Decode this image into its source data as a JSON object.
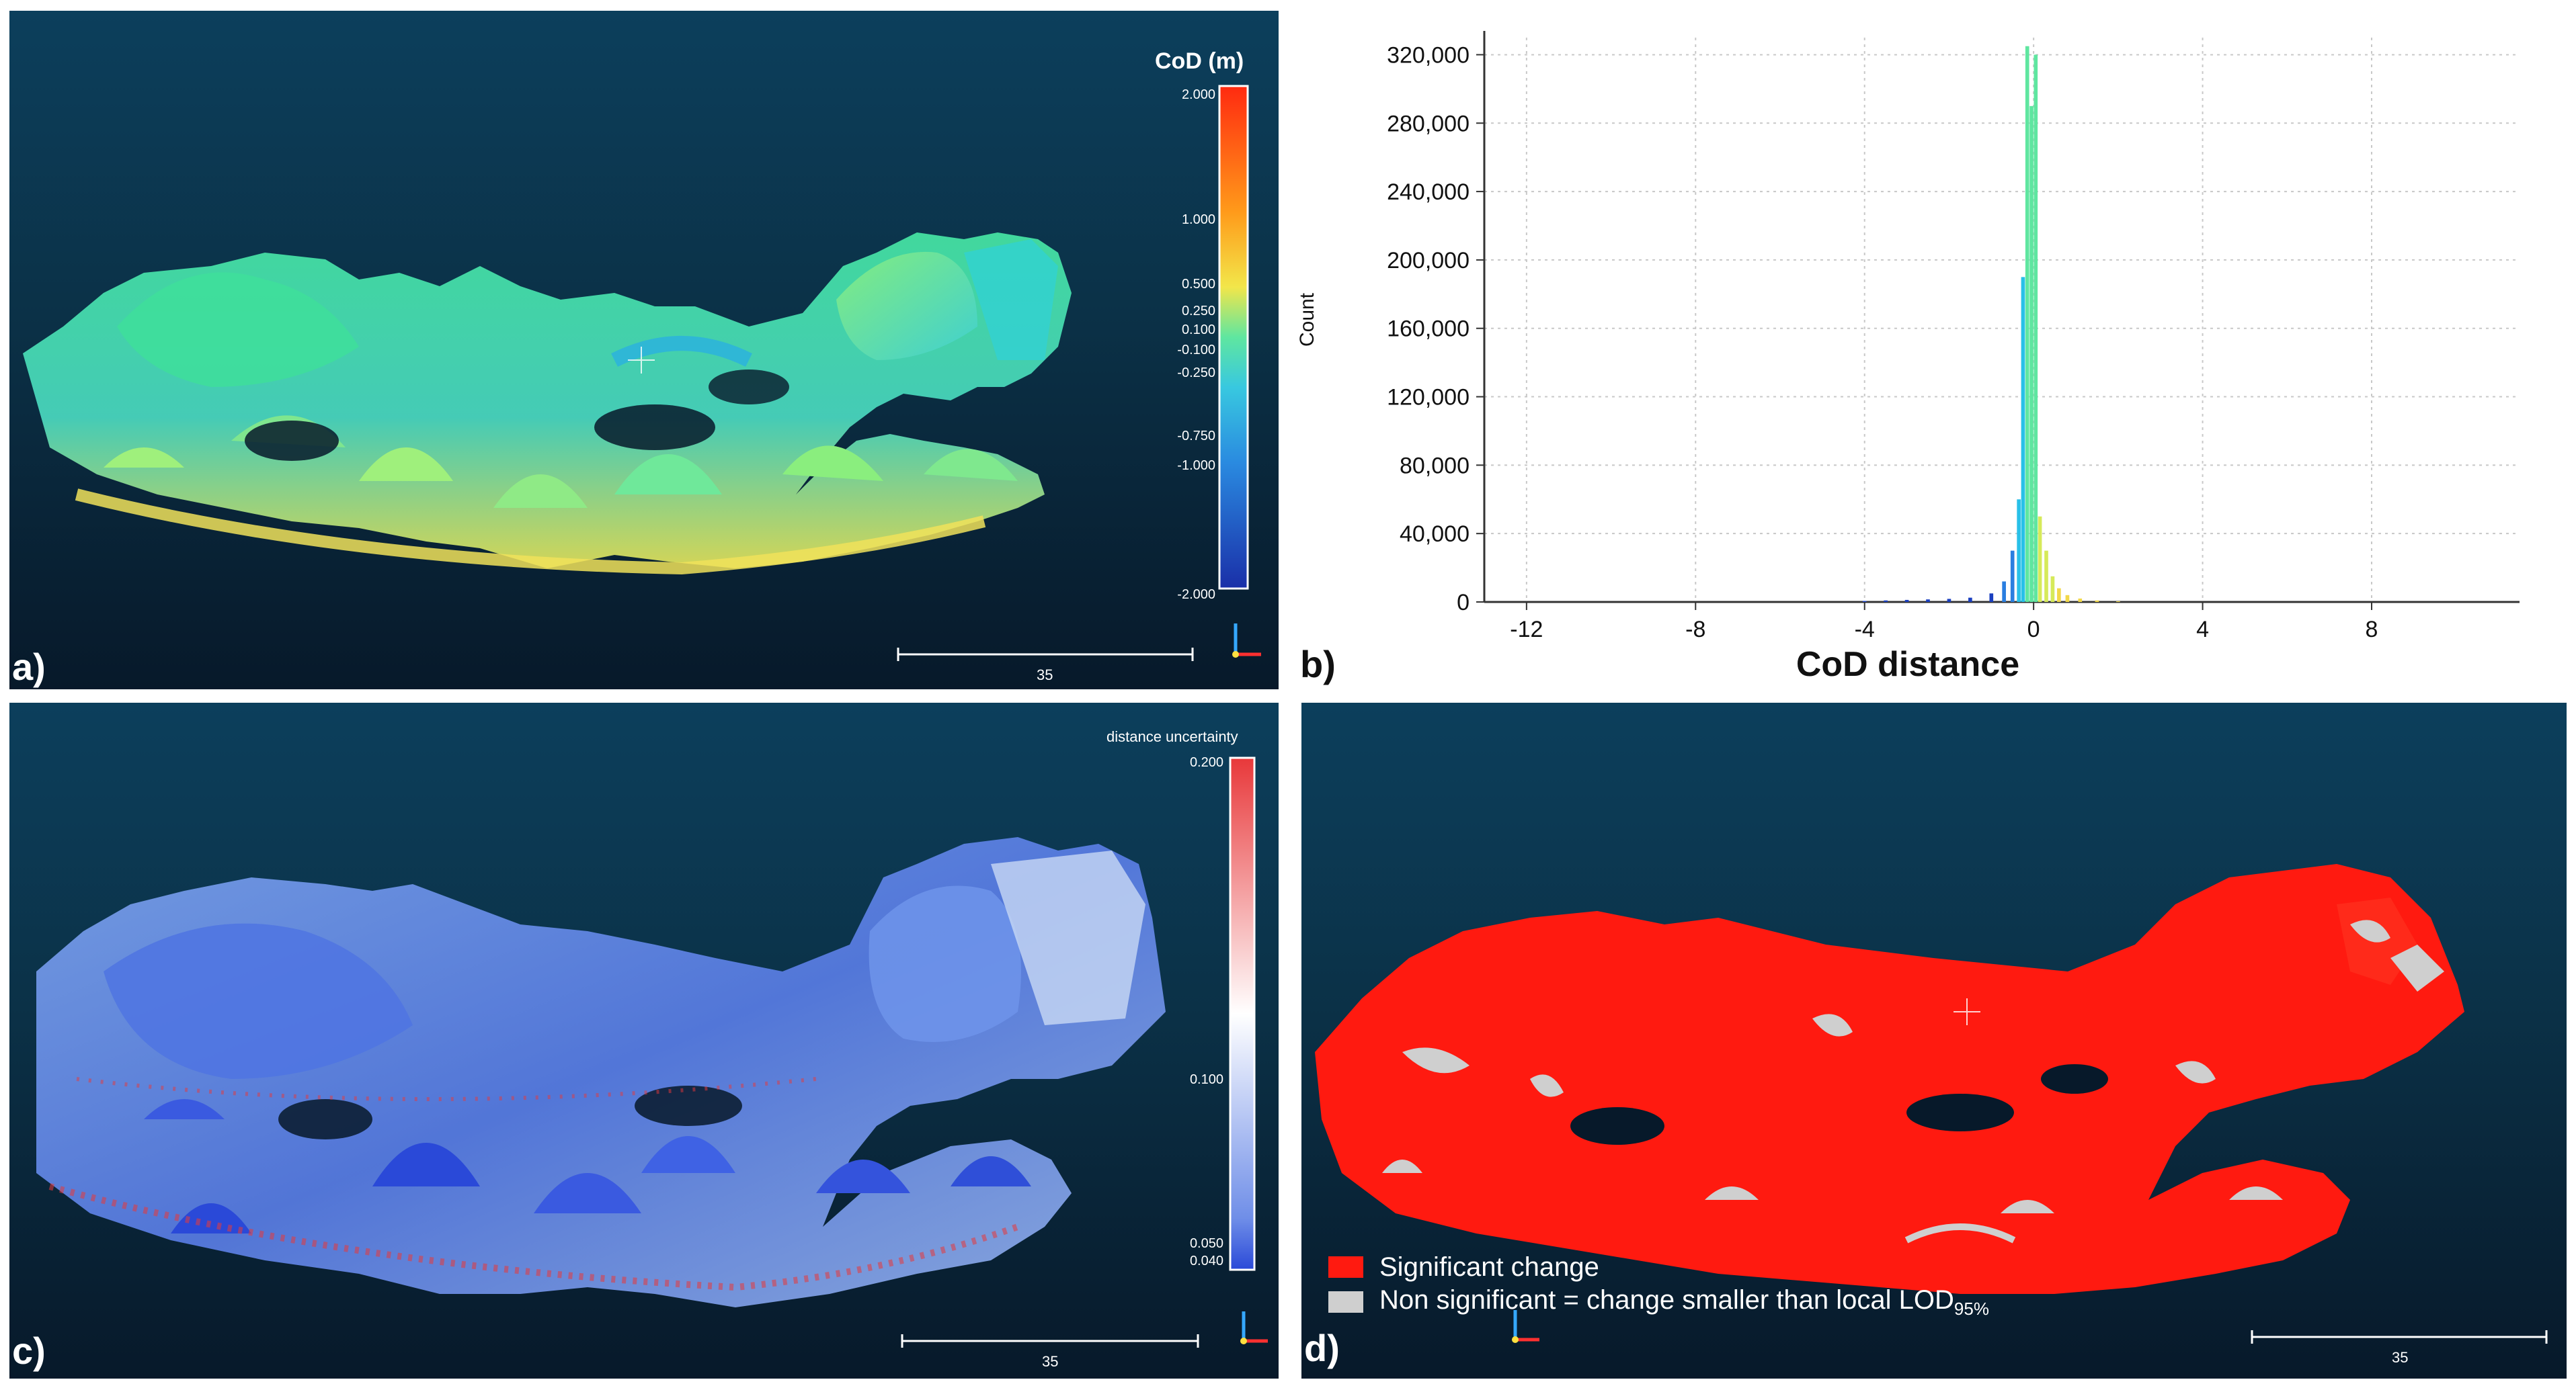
{
  "panels": {
    "a": {
      "label": "a)",
      "colorbar": {
        "title": "CoD (m)",
        "ticks": [
          "2.000",
          "1.000",
          "0.500",
          "0.250",
          "0.100",
          "-0.100",
          "-0.250",
          "-0.750",
          "-1.000",
          "-2.000"
        ],
        "tick_values": [
          2.0,
          1.0,
          0.5,
          0.25,
          0.1,
          -0.1,
          -0.25,
          -0.75,
          -1.0,
          -2.0
        ]
      },
      "scale_bar": {
        "label": "35"
      }
    },
    "b": {
      "label": "b)"
    },
    "c": {
      "label": "c)",
      "colorbar": {
        "title": "distance uncertainty",
        "ticks": [
          "0.200",
          "0.100",
          "0.050",
          "0.040"
        ],
        "tick_values": [
          0.2,
          0.1,
          0.05,
          0.04
        ]
      },
      "scale_bar": {
        "label": "35"
      }
    },
    "d": {
      "label": "d)",
      "legend": {
        "significant": "Significant change",
        "non_significant_prefix": "Non significant = change smaller than local LOD",
        "non_significant_sub": "95%"
      },
      "scale_bar": {
        "label": "35"
      }
    }
  },
  "colors": {
    "significant": "#ff1a10",
    "non_significant": "#cfcfcf",
    "cod_high": "#ff2a10",
    "cod_zero": "#5fe6a0",
    "cod_low": "#1a2fa8",
    "unc_high": "#e8383a",
    "unc_low": "#2a49d8"
  },
  "chart_data": {
    "type": "bar",
    "title": "",
    "xlabel": "CoD distance",
    "ylabel": "Count",
    "xlim": [
      -13,
      11.5
    ],
    "ylim": [
      0,
      330000
    ],
    "xticks": [
      -12,
      -8,
      -4,
      0,
      4,
      8
    ],
    "xtick_labels": [
      "-12",
      "-8",
      "-4",
      "0",
      "4",
      "8"
    ],
    "yticks": [
      0,
      40000,
      80000,
      120000,
      160000,
      200000,
      240000,
      280000,
      320000
    ],
    "ytick_labels": [
      "0",
      "40,000",
      "80,000",
      "120,000",
      "160,000",
      "200,000",
      "240,000",
      "280,000",
      "320,000"
    ],
    "grid": true,
    "bins": [
      {
        "x": -4.0,
        "count": 600
      },
      {
        "x": -3.5,
        "count": 900
      },
      {
        "x": -3.0,
        "count": 1200
      },
      {
        "x": -2.5,
        "count": 1500
      },
      {
        "x": -2.0,
        "count": 1800
      },
      {
        "x": -1.5,
        "count": 2500
      },
      {
        "x": -1.0,
        "count": 5000
      },
      {
        "x": -0.7,
        "count": 12000
      },
      {
        "x": -0.5,
        "count": 30000
      },
      {
        "x": -0.35,
        "count": 60000
      },
      {
        "x": -0.25,
        "count": 190000
      },
      {
        "x": -0.15,
        "count": 325000
      },
      {
        "x": -0.05,
        "count": 290000
      },
      {
        "x": 0.05,
        "count": 320000
      },
      {
        "x": 0.15,
        "count": 50000
      },
      {
        "x": 0.3,
        "count": 30000
      },
      {
        "x": 0.45,
        "count": 15000
      },
      {
        "x": 0.6,
        "count": 8000
      },
      {
        "x": 0.8,
        "count": 4000
      },
      {
        "x": 1.1,
        "count": 2000
      },
      {
        "x": 1.5,
        "count": 900
      },
      {
        "x": 2.0,
        "count": 400
      }
    ]
  }
}
